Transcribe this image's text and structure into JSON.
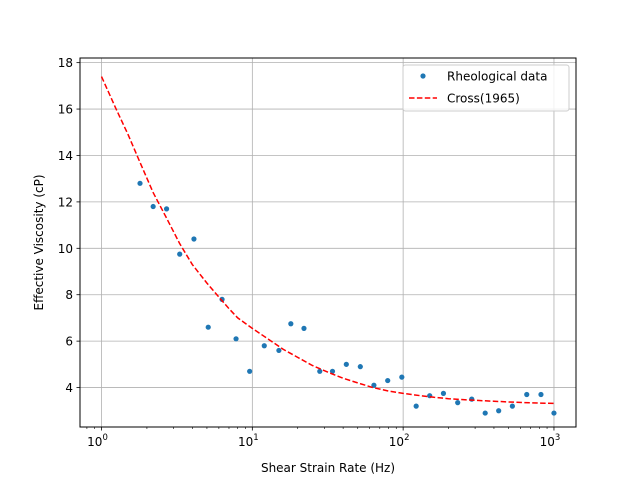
{
  "chart_data": {
    "type": "scatter",
    "xlabel": "Shear Strain Rate (Hz)",
    "ylabel": "Effective Viscosity (cP)",
    "x_scale": "log",
    "xlim": [
      0.72,
      1400
    ],
    "ylim": [
      2.3,
      18.2
    ],
    "x_ticks": [
      {
        "value": 1,
        "base": "10",
        "exp": "0"
      },
      {
        "value": 10,
        "base": "10",
        "exp": "1"
      },
      {
        "value": 100,
        "base": "10",
        "exp": "2"
      },
      {
        "value": 1000,
        "base": "10",
        "exp": "3"
      }
    ],
    "y_ticks": [
      4,
      6,
      8,
      10,
      12,
      14,
      16,
      18
    ],
    "grid": true,
    "legend_position": "top-right",
    "series": [
      {
        "name": "Rheological data",
        "style": "markers",
        "color": "#1f77b4",
        "points": [
          [
            1.8,
            12.8
          ],
          [
            2.2,
            11.8
          ],
          [
            2.7,
            11.7
          ],
          [
            3.3,
            9.75
          ],
          [
            4.1,
            10.4
          ],
          [
            5.1,
            6.6
          ],
          [
            6.3,
            7.8
          ],
          [
            7.8,
            6.1
          ],
          [
            9.6,
            4.7
          ],
          [
            12,
            5.8
          ],
          [
            15,
            5.6
          ],
          [
            18,
            6.75
          ],
          [
            22,
            6.55
          ],
          [
            28,
            4.7
          ],
          [
            34,
            4.7
          ],
          [
            42,
            5.0
          ],
          [
            52,
            4.9
          ],
          [
            64,
            4.1
          ],
          [
            79,
            4.3
          ],
          [
            98,
            4.45
          ],
          [
            122,
            3.2
          ],
          [
            150,
            3.65
          ],
          [
            185,
            3.75
          ],
          [
            230,
            3.35
          ],
          [
            285,
            3.5
          ],
          [
            350,
            2.9
          ],
          [
            430,
            3.0
          ],
          [
            530,
            3.2
          ],
          [
            660,
            3.7
          ],
          [
            820,
            3.7
          ],
          [
            1000,
            2.9
          ]
        ]
      },
      {
        "name": "Cross(1965)",
        "style": "dashed-line",
        "color": "#ff0000",
        "points": [
          [
            1,
            17.4
          ],
          [
            1.25,
            16.0
          ],
          [
            1.5,
            14.9
          ],
          [
            1.8,
            13.7
          ],
          [
            2.2,
            12.4
          ],
          [
            2.7,
            11.3
          ],
          [
            3.3,
            10.2
          ],
          [
            4,
            9.3
          ],
          [
            5,
            8.5
          ],
          [
            6,
            7.9
          ],
          [
            7,
            7.4
          ],
          [
            8,
            7.0
          ],
          [
            10,
            6.55
          ],
          [
            13,
            6.05
          ],
          [
            16,
            5.65
          ],
          [
            20,
            5.3
          ],
          [
            25,
            4.95
          ],
          [
            32,
            4.65
          ],
          [
            40,
            4.4
          ],
          [
            50,
            4.2
          ],
          [
            63,
            4.0
          ],
          [
            80,
            3.85
          ],
          [
            100,
            3.75
          ],
          [
            130,
            3.65
          ],
          [
            160,
            3.58
          ],
          [
            200,
            3.52
          ],
          [
            250,
            3.48
          ],
          [
            320,
            3.44
          ],
          [
            400,
            3.41
          ],
          [
            500,
            3.38
          ],
          [
            640,
            3.35
          ],
          [
            800,
            3.33
          ],
          [
            1000,
            3.32
          ]
        ]
      }
    ]
  }
}
